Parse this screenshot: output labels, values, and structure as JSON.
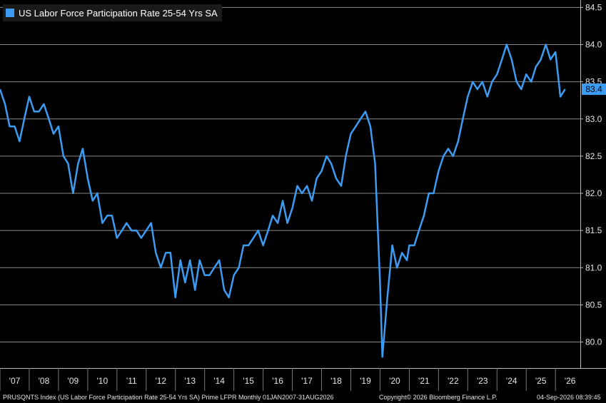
{
  "chart_data": {
    "type": "line",
    "title": "US Labor Force Participation Rate 25-54 Yrs SA",
    "series": [
      {
        "name": "US Labor Force Participation Rate 25-54 Yrs SA",
        "color": "#3d9bf2",
        "points": [
          [
            2007.0,
            83.4
          ],
          [
            2007.17,
            83.2
          ],
          [
            2007.33,
            82.9
          ],
          [
            2007.5,
            82.9
          ],
          [
            2007.67,
            82.7
          ],
          [
            2007.83,
            83.0
          ],
          [
            2008.0,
            83.3
          ],
          [
            2008.17,
            83.1
          ],
          [
            2008.33,
            83.1
          ],
          [
            2008.5,
            83.2
          ],
          [
            2008.67,
            83.0
          ],
          [
            2008.83,
            82.8
          ],
          [
            2009.0,
            82.9
          ],
          [
            2009.17,
            82.5
          ],
          [
            2009.33,
            82.4
          ],
          [
            2009.5,
            82.0
          ],
          [
            2009.67,
            82.4
          ],
          [
            2009.83,
            82.6
          ],
          [
            2010.0,
            82.2
          ],
          [
            2010.17,
            81.9
          ],
          [
            2010.33,
            82.0
          ],
          [
            2010.5,
            81.6
          ],
          [
            2010.67,
            81.7
          ],
          [
            2010.83,
            81.7
          ],
          [
            2011.0,
            81.4
          ],
          [
            2011.17,
            81.5
          ],
          [
            2011.33,
            81.6
          ],
          [
            2011.5,
            81.5
          ],
          [
            2011.67,
            81.5
          ],
          [
            2011.83,
            81.4
          ],
          [
            2012.0,
            81.5
          ],
          [
            2012.17,
            81.6
          ],
          [
            2012.33,
            81.2
          ],
          [
            2012.5,
            81.0
          ],
          [
            2012.67,
            81.2
          ],
          [
            2012.83,
            81.2
          ],
          [
            2013.0,
            80.6
          ],
          [
            2013.17,
            81.1
          ],
          [
            2013.33,
            80.8
          ],
          [
            2013.5,
            81.1
          ],
          [
            2013.67,
            80.7
          ],
          [
            2013.83,
            81.1
          ],
          [
            2014.0,
            80.9
          ],
          [
            2014.17,
            80.9
          ],
          [
            2014.33,
            81.0
          ],
          [
            2014.5,
            81.1
          ],
          [
            2014.67,
            80.7
          ],
          [
            2014.83,
            80.6
          ],
          [
            2015.0,
            80.9
          ],
          [
            2015.17,
            81.0
          ],
          [
            2015.33,
            81.3
          ],
          [
            2015.5,
            81.3
          ],
          [
            2015.67,
            81.4
          ],
          [
            2015.83,
            81.5
          ],
          [
            2016.0,
            81.3
          ],
          [
            2016.17,
            81.5
          ],
          [
            2016.33,
            81.7
          ],
          [
            2016.5,
            81.6
          ],
          [
            2016.67,
            81.9
          ],
          [
            2016.83,
            81.6
          ],
          [
            2017.0,
            81.8
          ],
          [
            2017.17,
            82.1
          ],
          [
            2017.33,
            82.0
          ],
          [
            2017.5,
            82.1
          ],
          [
            2017.67,
            81.9
          ],
          [
            2017.83,
            82.2
          ],
          [
            2018.0,
            82.3
          ],
          [
            2018.17,
            82.5
          ],
          [
            2018.33,
            82.4
          ],
          [
            2018.5,
            82.2
          ],
          [
            2018.67,
            82.1
          ],
          [
            2018.83,
            82.5
          ],
          [
            2019.0,
            82.8
          ],
          [
            2019.17,
            82.9
          ],
          [
            2019.33,
            83.0
          ],
          [
            2019.5,
            83.1
          ],
          [
            2019.67,
            82.9
          ],
          [
            2019.83,
            82.4
          ],
          [
            2020.0,
            80.8
          ],
          [
            2020.08,
            79.8
          ],
          [
            2020.25,
            80.6
          ],
          [
            2020.42,
            81.3
          ],
          [
            2020.58,
            81.0
          ],
          [
            2020.75,
            81.2
          ],
          [
            2020.92,
            81.1
          ],
          [
            2021.0,
            81.3
          ],
          [
            2021.17,
            81.3
          ],
          [
            2021.33,
            81.5
          ],
          [
            2021.5,
            81.7
          ],
          [
            2021.67,
            82.0
          ],
          [
            2021.83,
            82.0
          ],
          [
            2022.0,
            82.3
          ],
          [
            2022.17,
            82.5
          ],
          [
            2022.33,
            82.6
          ],
          [
            2022.5,
            82.5
          ],
          [
            2022.67,
            82.7
          ],
          [
            2022.83,
            83.0
          ],
          [
            2023.0,
            83.3
          ],
          [
            2023.17,
            83.5
          ],
          [
            2023.33,
            83.4
          ],
          [
            2023.5,
            83.5
          ],
          [
            2023.67,
            83.3
          ],
          [
            2023.83,
            83.5
          ],
          [
            2024.0,
            83.6
          ],
          [
            2024.17,
            83.8
          ],
          [
            2024.33,
            84.0
          ],
          [
            2024.5,
            83.8
          ],
          [
            2024.67,
            83.5
          ],
          [
            2024.83,
            83.4
          ],
          [
            2025.0,
            83.6
          ],
          [
            2025.17,
            83.5
          ],
          [
            2025.33,
            83.7
          ],
          [
            2025.5,
            83.8
          ],
          [
            2025.67,
            84.0
          ],
          [
            2025.83,
            83.8
          ],
          [
            2026.0,
            83.9
          ],
          [
            2026.17,
            83.3
          ],
          [
            2026.33,
            83.4
          ]
        ]
      }
    ],
    "x_ticks": [
      "'07",
      "'08",
      "'09",
      "'10",
      "'11",
      "'12",
      "'13",
      "'14",
      "'15",
      "'16",
      "'17",
      "'18",
      "'19",
      "'20",
      "'21",
      "'22",
      "'23",
      "'24",
      "'25",
      "'26"
    ],
    "x_tick_years": [
      2007,
      2008,
      2009,
      2010,
      2011,
      2012,
      2013,
      2014,
      2015,
      2016,
      2017,
      2018,
      2019,
      2020,
      2021,
      2022,
      2023,
      2024,
      2025,
      2026
    ],
    "y_ticks": [
      "80.0",
      "80.5",
      "81.0",
      "81.5",
      "82.0",
      "82.5",
      "83.0",
      "83.5",
      "84.0",
      "84.5"
    ],
    "y_tick_values": [
      80.0,
      80.5,
      81.0,
      81.5,
      82.0,
      82.5,
      83.0,
      83.5,
      84.0,
      84.5
    ],
    "xlim": [
      2007.0,
      2026.85
    ],
    "ylim": [
      79.65,
      84.6
    ],
    "last_value": "83.4",
    "grid": "horizontal",
    "legend_position": "top-left",
    "xlabel": "",
    "ylabel": ""
  },
  "footer": {
    "left": "PRUSQNTS Index (US Labor Force Participation Rate 25-54 Yrs SA) Prime LFPR Monthly 01JAN2007-31AUG2026",
    "center": "Copyright© 2026 Bloomberg Finance L.P.",
    "right": "04-Sep-2026 08:39:45"
  }
}
